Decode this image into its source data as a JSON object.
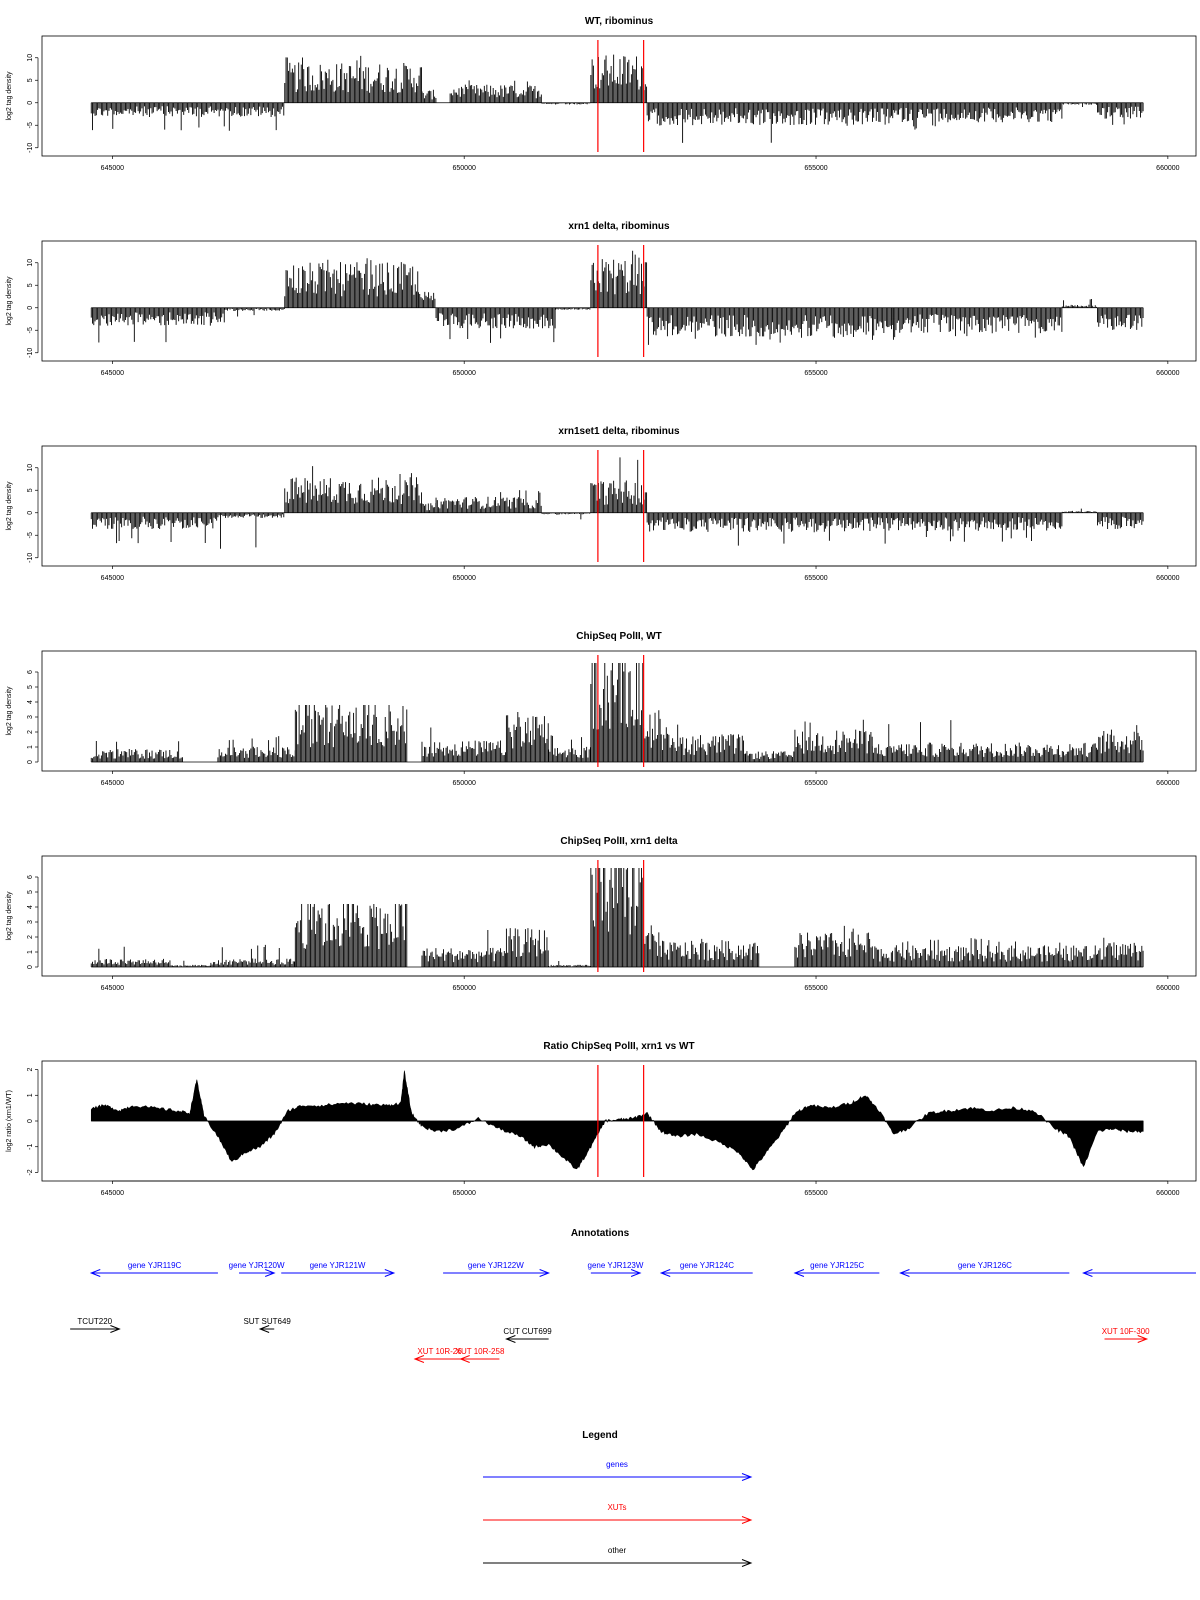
{
  "colors": {
    "gene": "#0000ff",
    "xut": "#ff0000",
    "other": "#000000",
    "marker": "#ff0000",
    "bars": "#000000"
  },
  "markers": [
    651900,
    652550
  ],
  "xaxis": {
    "ticks": [
      645000,
      650000,
      655000,
      660000
    ],
    "range": [
      644000,
      660400
    ]
  },
  "chart_data": [
    {
      "type": "bar",
      "title": "WT, ribominus",
      "ylabel": "log2 tag density",
      "yticks": [
        10,
        5,
        0,
        -5,
        -10
      ],
      "ylim": [
        -10.5,
        13.5
      ],
      "x_start": 644700,
      "x_end": 659650,
      "segments": [
        {
          "x": [
            644700,
            647450
          ],
          "dir": "down",
          "mean": 2.2,
          "max": 6.5
        },
        {
          "x": [
            647450,
            649400
          ],
          "dir": "up",
          "mean": 6.2,
          "max": 10.5
        },
        {
          "x": [
            649400,
            649600
          ],
          "dir": "up",
          "mean": 2.0,
          "max": 3.5
        },
        {
          "x": [
            649800,
            651100
          ],
          "dir": "up",
          "mean": 2.8,
          "max": 5.0
        },
        {
          "x": [
            651100,
            651800
          ],
          "dir": "down",
          "mean": 0.3,
          "max": 1.5
        },
        {
          "x": [
            651800,
            652600
          ],
          "dir": "up",
          "mean": 7.5,
          "max": 13.0
        },
        {
          "x": [
            652600,
            654650
          ],
          "dir": "down",
          "mean": 3.5,
          "max": 9.0
        },
        {
          "x": [
            654650,
            656100
          ],
          "dir": "down",
          "mean": 3.5,
          "max": 6.0
        },
        {
          "x": [
            656100,
            658500
          ],
          "dir": "down",
          "mean": 3.0,
          "max": 6.0
        },
        {
          "x": [
            658500,
            659000
          ],
          "dir": "down",
          "mean": 0.3,
          "max": 1.0
        },
        {
          "x": [
            659000,
            659650
          ],
          "dir": "down",
          "mean": 2.5,
          "max": 5.0
        }
      ]
    },
    {
      "type": "bar",
      "title": "xrn1 delta, ribominus",
      "ylabel": "log2 tag density",
      "yticks": [
        10,
        5,
        0,
        -5,
        -10
      ],
      "ylim": [
        -10.5,
        13.5
      ],
      "x_start": 644700,
      "x_end": 659650,
      "segments": [
        {
          "x": [
            644700,
            646600
          ],
          "dir": "down",
          "mean": 2.8,
          "max": 8.0
        },
        {
          "x": [
            646600,
            647450
          ],
          "dir": "down",
          "mean": 0.5,
          "max": 2.0
        },
        {
          "x": [
            647450,
            649350
          ],
          "dir": "up",
          "mean": 7.0,
          "max": 11.5
        },
        {
          "x": [
            649350,
            649600
          ],
          "dir": "up",
          "mean": 2.5,
          "max": 5.0
        },
        {
          "x": [
            649600,
            651300
          ],
          "dir": "down",
          "mean": 3.2,
          "max": 8.5
        },
        {
          "x": [
            651300,
            651800
          ],
          "dir": "down",
          "mean": 0.3,
          "max": 1.0
        },
        {
          "x": [
            651800,
            652600
          ],
          "dir": "up",
          "mean": 7.8,
          "max": 13.0
        },
        {
          "x": [
            652600,
            654650
          ],
          "dir": "down",
          "mean": 4.5,
          "max": 8.5
        },
        {
          "x": [
            654650,
            656100
          ],
          "dir": "down",
          "mean": 4.5,
          "max": 8.0
        },
        {
          "x": [
            656100,
            658500
          ],
          "dir": "down",
          "mean": 4.0,
          "max": 7.5
        },
        {
          "x": [
            658500,
            659000
          ],
          "dir": "up",
          "mean": 0.5,
          "max": 2.0
        },
        {
          "x": [
            659000,
            659650
          ],
          "dir": "down",
          "mean": 3.5,
          "max": 5.5
        }
      ]
    },
    {
      "type": "bar",
      "title": "xrn1set1 delta, ribominus",
      "ylabel": "log2 tag density",
      "yticks": [
        10,
        5,
        0,
        -5,
        -10
      ],
      "ylim": [
        -10.5,
        13.5
      ],
      "x_start": 644700,
      "x_end": 659650,
      "segments": [
        {
          "x": [
            644700,
            646500
          ],
          "dir": "down",
          "mean": 2.5,
          "max": 7.0
        },
        {
          "x": [
            646500,
            647450
          ],
          "dir": "down",
          "mean": 0.8,
          "max": 9.5
        },
        {
          "x": [
            647450,
            649400
          ],
          "dir": "up",
          "mean": 5.5,
          "max": 10.5
        },
        {
          "x": [
            649400,
            649600
          ],
          "dir": "up",
          "mean": 1.5,
          "max": 3.0
        },
        {
          "x": [
            649600,
            651100
          ],
          "dir": "up",
          "mean": 2.5,
          "max": 5.5
        },
        {
          "x": [
            651100,
            651800
          ],
          "dir": "down",
          "mean": 0.3,
          "max": 1.5
        },
        {
          "x": [
            651800,
            652600
          ],
          "dir": "up",
          "mean": 5.0,
          "max": 13.0
        },
        {
          "x": [
            652600,
            654650
          ],
          "dir": "down",
          "mean": 3.0,
          "max": 7.5
        },
        {
          "x": [
            654650,
            656100
          ],
          "dir": "down",
          "mean": 3.0,
          "max": 7.0
        },
        {
          "x": [
            656100,
            658500
          ],
          "dir": "down",
          "mean": 2.8,
          "max": 6.5
        },
        {
          "x": [
            658500,
            659000
          ],
          "dir": "up",
          "mean": 0.3,
          "max": 1.0
        },
        {
          "x": [
            659000,
            659650
          ],
          "dir": "down",
          "mean": 2.5,
          "max": 4.5
        }
      ]
    },
    {
      "type": "bar",
      "title": "ChipSeq PolII, WT",
      "ylabel": "log2 tag density",
      "yticks": [
        6,
        5,
        4,
        3,
        2,
        1,
        0
      ],
      "ylim": [
        -0.2,
        7.0
      ],
      "x_start": 644700,
      "x_end": 659650,
      "segments": [
        {
          "x": [
            644700,
            646000
          ],
          "dir": "up",
          "mean": 0.6,
          "max": 1.5
        },
        {
          "x": [
            646000,
            646500
          ],
          "dir": "up",
          "mean": 0.0,
          "max": 0.0
        },
        {
          "x": [
            646500,
            647600
          ],
          "dir": "up",
          "mean": 0.7,
          "max": 1.8
        },
        {
          "x": [
            647600,
            649200
          ],
          "dir": "up",
          "mean": 2.8,
          "max": 3.8
        },
        {
          "x": [
            649200,
            649400
          ],
          "dir": "up",
          "mean": 0.0,
          "max": 0.0
        },
        {
          "x": [
            649400,
            650600
          ],
          "dir": "up",
          "mean": 1.0,
          "max": 2.8
        },
        {
          "x": [
            650600,
            651200
          ],
          "dir": "up",
          "mean": 2.2,
          "max": 3.5
        },
        {
          "x": [
            651200,
            651800
          ],
          "dir": "up",
          "mean": 0.7,
          "max": 1.8
        },
        {
          "x": [
            651800,
            652550
          ],
          "dir": "up",
          "mean": 5.8,
          "max": 6.6
        },
        {
          "x": [
            652550,
            652800
          ],
          "dir": "up",
          "mean": 2.5,
          "max": 3.8
        },
        {
          "x": [
            652800,
            654000
          ],
          "dir": "up",
          "mean": 1.3,
          "max": 2.8
        },
        {
          "x": [
            654000,
            654700
          ],
          "dir": "up",
          "mean": 0.5,
          "max": 1.5
        },
        {
          "x": [
            654700,
            655800
          ],
          "dir": "up",
          "mean": 1.5,
          "max": 3.2
        },
        {
          "x": [
            655800,
            659000
          ],
          "dir": "up",
          "mean": 0.9,
          "max": 2.8
        },
        {
          "x": [
            659000,
            659650
          ],
          "dir": "up",
          "mean": 1.5,
          "max": 3.0
        }
      ]
    },
    {
      "type": "bar",
      "title": "ChipSeq PolII, xrn1 delta",
      "ylabel": "log2 tag density",
      "yticks": [
        6,
        5,
        4,
        3,
        2,
        1,
        0
      ],
      "ylim": [
        -0.2,
        7.0
      ],
      "x_start": 644700,
      "x_end": 659650,
      "segments": [
        {
          "x": [
            644700,
            645800
          ],
          "dir": "up",
          "mean": 0.4,
          "max": 1.5
        },
        {
          "x": [
            645800,
            646400
          ],
          "dir": "up",
          "mean": 0.1,
          "max": 0.5
        },
        {
          "x": [
            646400,
            647600
          ],
          "dir": "up",
          "mean": 0.4,
          "max": 1.5
        },
        {
          "x": [
            647600,
            649200
          ],
          "dir": "up",
          "mean": 3.3,
          "max": 4.2
        },
        {
          "x": [
            649200,
            649400
          ],
          "dir": "up",
          "mean": 0.0,
          "max": 0.0
        },
        {
          "x": [
            649400,
            650600
          ],
          "dir": "up",
          "mean": 0.9,
          "max": 2.5
        },
        {
          "x": [
            650600,
            651200
          ],
          "dir": "up",
          "mean": 1.8,
          "max": 2.8
        },
        {
          "x": [
            651200,
            651800
          ],
          "dir": "up",
          "mean": 0.1,
          "max": 0.5
        },
        {
          "x": [
            651800,
            652550
          ],
          "dir": "up",
          "mean": 5.8,
          "max": 6.6
        },
        {
          "x": [
            652550,
            652800
          ],
          "dir": "up",
          "mean": 1.8,
          "max": 3.0
        },
        {
          "x": [
            652800,
            654200
          ],
          "dir": "up",
          "mean": 1.2,
          "max": 2.0
        },
        {
          "x": [
            654200,
            654700
          ],
          "dir": "up",
          "mean": 0.0,
          "max": 0.0
        },
        {
          "x": [
            654700,
            655800
          ],
          "dir": "up",
          "mean": 1.6,
          "max": 2.8
        },
        {
          "x": [
            655800,
            659000
          ],
          "dir": "up",
          "mean": 1.0,
          "max": 2.0
        },
        {
          "x": [
            659000,
            659650
          ],
          "dir": "up",
          "mean": 1.2,
          "max": 2.2
        }
      ]
    },
    {
      "type": "area",
      "title": "Ratio ChipSeq PolII, xrn1 vs WT",
      "ylabel": "log2 ratio (xrn1/WT)",
      "yticks": [
        2,
        1,
        0,
        -1,
        -2
      ],
      "ylim": [
        -2.1,
        2.1
      ],
      "x": [
        644700,
        644900,
        645100,
        645300,
        645600,
        645900,
        646100,
        646200,
        646300,
        646500,
        646700,
        646900,
        647100,
        647300,
        647500,
        647700,
        648000,
        648300,
        648600,
        648900,
        649100,
        649150,
        649250,
        649400,
        649600,
        649900,
        650200,
        650500,
        650800,
        651000,
        651200,
        651400,
        651600,
        651800,
        652000,
        652200,
        652400,
        652600,
        652800,
        653000,
        653300,
        653600,
        653900,
        654100,
        654300,
        654500,
        654700,
        654900,
        655200,
        655500,
        655700,
        655900,
        656100,
        656300,
        656600,
        656900,
        657200,
        657500,
        657800,
        658100,
        658400,
        658600,
        658800,
        659000,
        659200,
        659400,
        659650
      ],
      "y": [
        0.5,
        0.6,
        0.4,
        0.6,
        0.5,
        0.4,
        0.3,
        1.6,
        0.2,
        -0.6,
        -1.6,
        -1.2,
        -1.0,
        -0.5,
        0.4,
        0.6,
        0.6,
        0.7,
        0.65,
        0.6,
        0.7,
        1.9,
        0.3,
        -0.2,
        -0.4,
        -0.3,
        0.1,
        -0.3,
        -0.6,
        -1.0,
        -0.9,
        -1.4,
        -1.9,
        -1.0,
        0.0,
        0.05,
        0.1,
        0.3,
        -0.4,
        -0.6,
        -0.5,
        -0.8,
        -1.2,
        -1.9,
        -1.2,
        -0.5,
        0.3,
        0.6,
        0.5,
        0.7,
        1.0,
        0.4,
        -0.5,
        -0.3,
        0.3,
        0.4,
        0.5,
        0.4,
        0.5,
        0.4,
        -0.3,
        -0.6,
        -1.8,
        -0.4,
        -0.3,
        -0.4,
        -0.4
      ]
    }
  ],
  "annotations": {
    "title": "Annotations",
    "features": [
      {
        "label": "gene YJR119C",
        "type": "gene",
        "start": 644700,
        "end": 646500,
        "dir": "left",
        "row": 0
      },
      {
        "label": "gene YJR120W",
        "type": "gene",
        "start": 646800,
        "end": 647300,
        "dir": "right",
        "row": 0
      },
      {
        "label": "gene YJR121W",
        "type": "gene",
        "start": 647400,
        "end": 649000,
        "dir": "right",
        "row": 0
      },
      {
        "label": "gene YJR122W",
        "type": "gene",
        "start": 649700,
        "end": 651200,
        "dir": "right",
        "row": 0
      },
      {
        "label": "gene YJR123W",
        "type": "gene",
        "start": 651800,
        "end": 652500,
        "dir": "right",
        "row": 0
      },
      {
        "label": "gene YJR124C",
        "type": "gene",
        "start": 652800,
        "end": 654100,
        "dir": "left",
        "row": 0
      },
      {
        "label": "gene YJR125C",
        "type": "gene",
        "start": 654700,
        "end": 655900,
        "dir": "left",
        "row": 0
      },
      {
        "label": "gene YJR126C",
        "type": "gene",
        "start": 656200,
        "end": 658600,
        "dir": "left",
        "row": 0
      },
      {
        "label": "",
        "type": "gene",
        "start": 658800,
        "end": 660400,
        "dir": "left",
        "row": 0
      },
      {
        "label": "TCUT220",
        "type": "other",
        "start": 644400,
        "end": 645100,
        "dir": "right",
        "row": 1
      },
      {
        "label": "SUT SUT649",
        "type": "other",
        "start": 647100,
        "end": 647300,
        "dir": "left",
        "row": 1
      },
      {
        "label": "CUT CUT699",
        "type": "other",
        "start": 650600,
        "end": 651200,
        "dir": "left",
        "row": 2
      },
      {
        "label": "XUT 10R-26",
        "type": "xut",
        "start": 649300,
        "end": 650000,
        "dir": "left",
        "row": 3
      },
      {
        "label": "XUT 10R-258",
        "type": "xut",
        "start": 649950,
        "end": 650500,
        "dir": "left",
        "row": 3
      },
      {
        "label": "XUT 10F-300",
        "type": "xut",
        "start": 659100,
        "end": 659700,
        "dir": "right",
        "row": 2
      }
    ]
  },
  "legend": {
    "title": "Legend",
    "items": [
      {
        "label": "genes",
        "type": "gene"
      },
      {
        "label": "XUTs",
        "type": "xut"
      },
      {
        "label": "other",
        "type": "other"
      }
    ]
  }
}
